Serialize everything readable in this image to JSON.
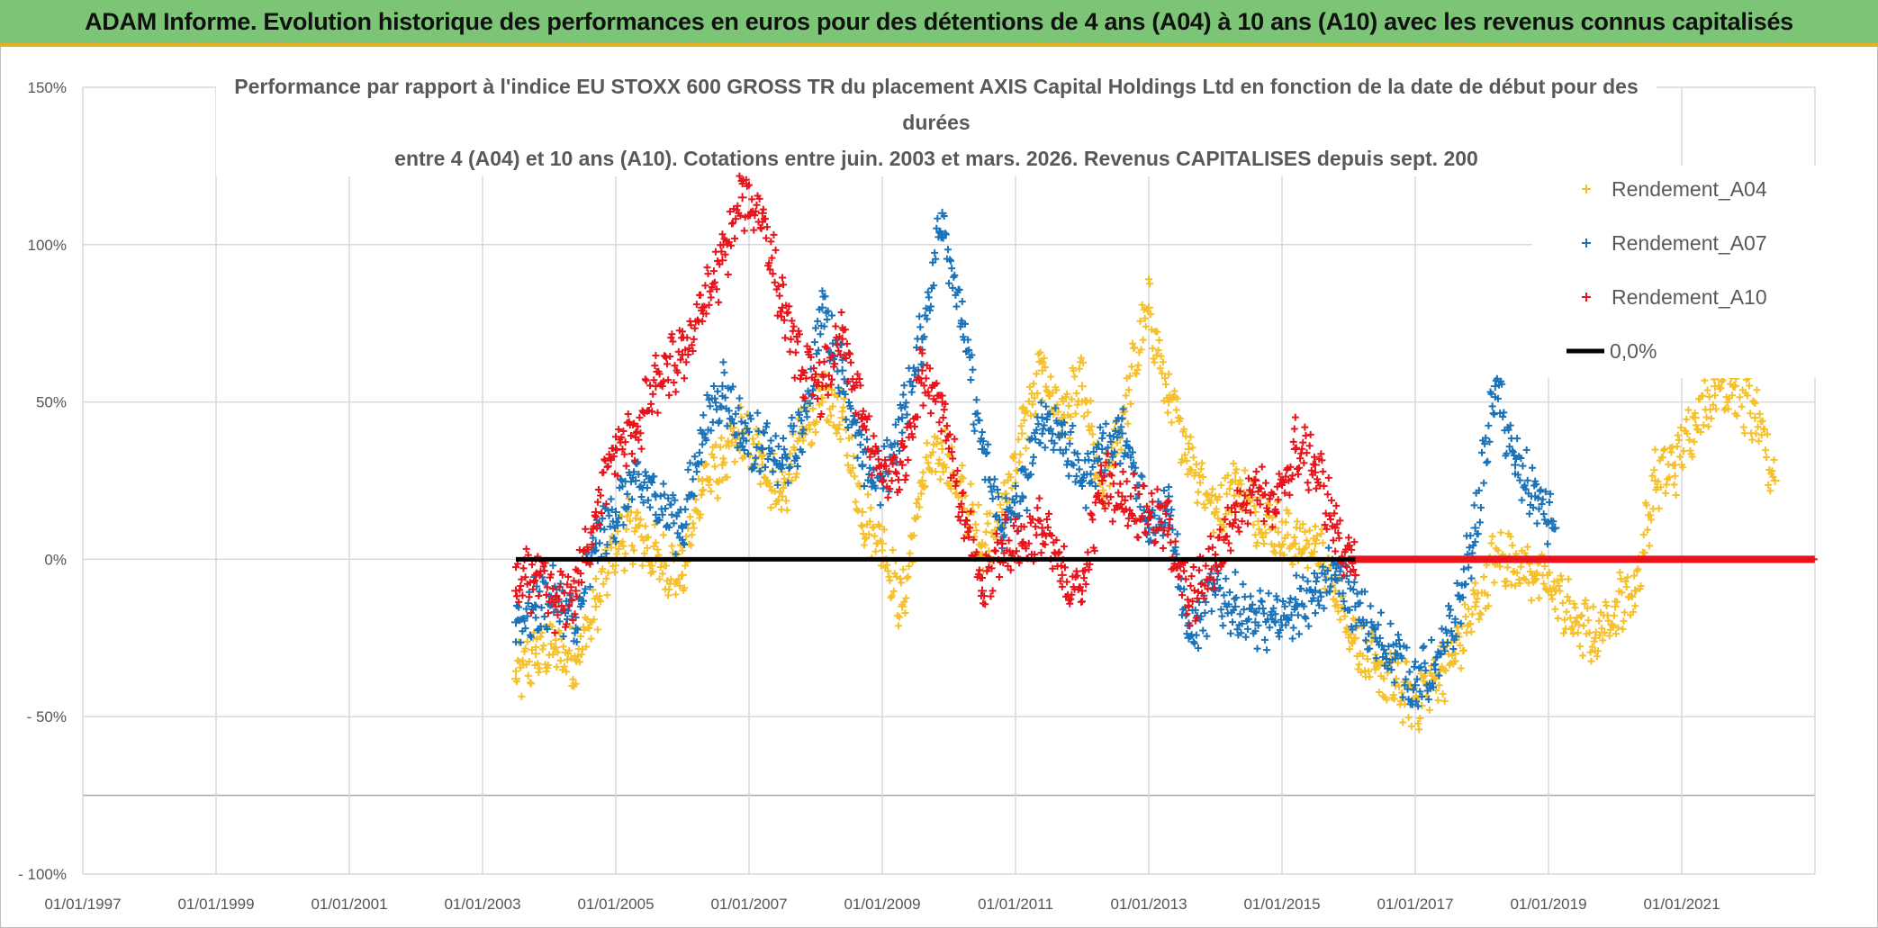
{
  "banner": {
    "title": "ADAM Informe. Evolution historique des performances en euros pour des détentions de 4 ans (A04) à 10 ans (A10) avec les revenus connus capitalisés"
  },
  "colors": {
    "a04": "#f5c02a",
    "a07": "#1a72b8",
    "a10": "#e8141b",
    "zero": "#000000",
    "banner": "#7cc576",
    "grid": "#d9d9d9"
  },
  "chart_data": {
    "type": "scatter",
    "title_lines": [
      "Performance par rapport à l'indice EU STOXX 600 GROSS TR  du placement AXIS Capital Holdings Ltd en fonction de la date de début pour des",
      "durées",
      "entre 4 (A04) et 10 ans (A10). Cotations entre juin. 2003 et mars. 2026. Revenus CAPITALISES depuis sept. 200"
    ],
    "x_range": [
      1997.0,
      2023.0
    ],
    "y_range": [
      -100,
      150
    ],
    "y_ticks": [
      {
        "value": 150,
        "label": "150%"
      },
      {
        "value": 100,
        "label": "100%"
      },
      {
        "value": 50,
        "label": "50%"
      },
      {
        "value": 0,
        "label": "0%"
      },
      {
        "value": -50,
        "label": "- 50%"
      },
      {
        "value": -100,
        "label": "- 100%"
      }
    ],
    "extra_gridline": -75,
    "x_ticks": [
      {
        "value": 1997,
        "label": "01/01/1997"
      },
      {
        "value": 1999,
        "label": "01/01/1999"
      },
      {
        "value": 2001,
        "label": "01/01/2001"
      },
      {
        "value": 2003,
        "label": "01/01/2003"
      },
      {
        "value": 2005,
        "label": "01/01/2005"
      },
      {
        "value": 2007,
        "label": "01/01/2007"
      },
      {
        "value": 2009,
        "label": "01/01/2009"
      },
      {
        "value": 2011,
        "label": "01/01/2011"
      },
      {
        "value": 2013,
        "label": "01/01/2013"
      },
      {
        "value": 2015,
        "label": "01/01/2015"
      },
      {
        "value": 2017,
        "label": "01/01/2017"
      },
      {
        "value": 2019,
        "label": "01/01/2019"
      },
      {
        "value": 2021,
        "label": "01/01/2021"
      }
    ],
    "legend": [
      {
        "name": "Rendement_A04",
        "marker": "+",
        "color_key": "a04"
      },
      {
        "name": "Rendement_A07",
        "marker": "+",
        "color_key": "a07"
      },
      {
        "name": "Rendement_A10",
        "marker": "+",
        "color_key": "a10"
      },
      {
        "name": "0,0%",
        "marker": "line",
        "color_key": "zero"
      }
    ],
    "series": [
      {
        "name": "Rendement_A04",
        "x": [
          2003.5,
          2003.8,
          2004.1,
          2004.4,
          2004.7,
          2005.0,
          2005.3,
          2005.6,
          2006.0,
          2006.3,
          2006.6,
          2006.9,
          2007.2,
          2007.5,
          2007.8,
          2008.1,
          2008.4,
          2008.7,
          2009.0,
          2009.3,
          2009.6,
          2009.9,
          2010.2,
          2010.5,
          2010.8,
          2011.1,
          2011.4,
          2011.7,
          2012.0,
          2012.3,
          2012.6,
          2013.0,
          2013.3,
          2013.6,
          2014.0,
          2014.3,
          2014.6,
          2014.9,
          2015.2,
          2015.5,
          2015.8,
          2016.1,
          2016.4,
          2016.7,
          2017.0,
          2017.3,
          2017.6,
          2017.9,
          2018.2,
          2018.5,
          2018.8,
          2019.1,
          2019.4,
          2019.7,
          2020.0,
          2020.3,
          2020.6,
          2020.9,
          2021.2,
          2021.5,
          2021.8,
          2022.1,
          2022.4
        ],
        "y": [
          -38,
          -30,
          -28,
          -32,
          -15,
          5,
          10,
          0,
          -5,
          25,
          30,
          40,
          30,
          20,
          40,
          50,
          45,
          15,
          5,
          -15,
          25,
          35,
          20,
          5,
          15,
          40,
          60,
          45,
          55,
          20,
          45,
          80,
          50,
          35,
          15,
          25,
          15,
          10,
          5,
          5,
          -10,
          -25,
          -35,
          -40,
          -45,
          -38,
          -30,
          -15,
          0,
          0,
          -5,
          -10,
          -20,
          -25,
          -15,
          -10,
          25,
          30,
          45,
          55,
          55,
          45,
          25
        ]
      },
      {
        "name": "Rendement_A07",
        "x": [
          2003.5,
          2003.8,
          2004.1,
          2004.4,
          2004.7,
          2005.0,
          2005.3,
          2005.6,
          2006.0,
          2006.3,
          2006.6,
          2006.9,
          2007.2,
          2007.5,
          2007.8,
          2008.1,
          2008.4,
          2008.7,
          2009.0,
          2009.3,
          2009.6,
          2009.9,
          2010.2,
          2010.5,
          2010.8,
          2011.1,
          2011.4,
          2011.7,
          2012.0,
          2012.3,
          2012.6,
          2013.0,
          2013.3,
          2013.6,
          2014.0,
          2014.3,
          2014.6,
          2014.9,
          2015.2,
          2015.5,
          2015.8,
          2016.1,
          2016.4,
          2016.7,
          2017.0,
          2017.3,
          2017.6,
          2017.9,
          2018.2,
          2018.5,
          2018.8,
          2019.1
        ],
        "y": [
          -20,
          -15,
          -12,
          -22,
          5,
          15,
          25,
          20,
          10,
          40,
          55,
          40,
          35,
          30,
          40,
          80,
          60,
          30,
          25,
          45,
          70,
          110,
          75,
          35,
          10,
          20,
          45,
          40,
          25,
          35,
          40,
          10,
          20,
          -25,
          -10,
          -15,
          -20,
          -20,
          -15,
          -10,
          -5,
          -15,
          -25,
          -30,
          -40,
          -35,
          -20,
          10,
          55,
          30,
          20,
          10
        ]
      },
      {
        "name": "Rendement_A10",
        "x": [
          2003.5,
          2003.8,
          2004.1,
          2004.4,
          2004.7,
          2005.0,
          2005.3,
          2005.6,
          2006.0,
          2006.3,
          2006.6,
          2006.9,
          2007.2,
          2007.5,
          2007.8,
          2008.1,
          2008.4,
          2008.7,
          2009.0,
          2009.3,
          2009.6,
          2009.9,
          2010.2,
          2010.5,
          2010.8,
          2011.1,
          2011.4,
          2011.7,
          2012.0,
          2012.3,
          2012.6,
          2013.0,
          2013.3,
          2013.6,
          2014.0,
          2014.3,
          2014.6,
          2014.9,
          2015.2,
          2015.5,
          2015.8,
          2016.1
        ],
        "y": [
          -10,
          -5,
          -15,
          -10,
          15,
          35,
          40,
          55,
          65,
          80,
          95,
          115,
          110,
          80,
          60,
          55,
          70,
          45,
          25,
          30,
          60,
          50,
          15,
          -10,
          5,
          5,
          10,
          -5,
          -10,
          25,
          20,
          15,
          10,
          -15,
          0,
          15,
          25,
          15,
          35,
          30,
          10,
          -5
        ]
      },
      {
        "name": "Rendement_A10 (zero segment)",
        "x_range": [
          2016.0,
          2023.0
        ],
        "y": 0
      },
      {
        "name": "0,0%",
        "x_range": [
          2003.5,
          2016.1
        ],
        "y": 0
      }
    ]
  }
}
